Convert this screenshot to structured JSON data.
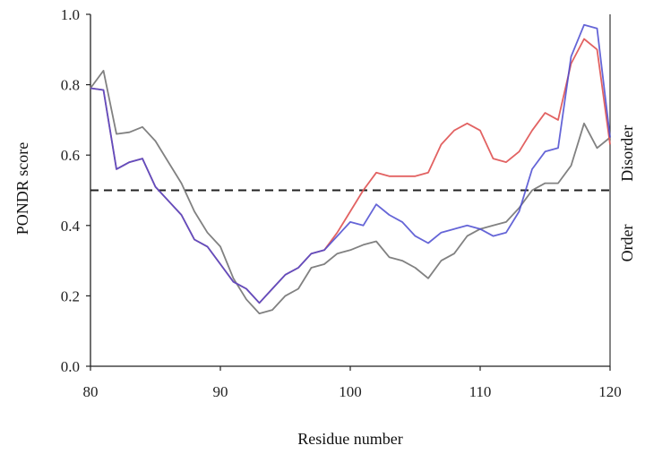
{
  "chart_data": {
    "type": "line",
    "xlabel": "Residue number",
    "ylabel": "PONDR score",
    "right_labels": {
      "order": "Order",
      "disorder": "Disorder"
    },
    "xlim": [
      80,
      120
    ],
    "ylim": [
      0,
      1.0
    ],
    "x_ticks": [
      80,
      90,
      100,
      110,
      120
    ],
    "y_ticks": [
      0.0,
      0.2,
      0.4,
      0.6,
      0.8,
      1.0
    ],
    "y_tick_labels": [
      "0.0",
      "0.2",
      "0.4",
      "0.6",
      "0.8",
      "1.0"
    ],
    "grid": false,
    "threshold": {
      "y": 0.5,
      "style": "dashed",
      "color": "#222222"
    },
    "x": [
      80,
      81,
      82,
      83,
      84,
      85,
      86,
      87,
      88,
      89,
      90,
      91,
      92,
      93,
      94,
      95,
      96,
      97,
      98,
      99,
      100,
      101,
      102,
      103,
      104,
      105,
      106,
      107,
      108,
      109,
      110,
      111,
      112,
      113,
      114,
      115,
      116,
      117,
      118,
      119,
      120
    ],
    "series": [
      {
        "color": "#e05a5a",
        "values": [
          0.79,
          0.785,
          0.56,
          0.58,
          0.59,
          0.51,
          0.47,
          0.43,
          0.36,
          0.34,
          0.29,
          0.24,
          0.22,
          0.18,
          0.22,
          0.26,
          0.28,
          0.32,
          0.33,
          0.38,
          0.44,
          0.5,
          0.55,
          0.54,
          0.54,
          0.54,
          0.55,
          0.63,
          0.67,
          0.69,
          0.67,
          0.59,
          0.58,
          0.61,
          0.67,
          0.72,
          0.7,
          0.86,
          0.93,
          0.9,
          0.63
        ]
      },
      {
        "color": "#4a4ad0",
        "values": [
          0.79,
          0.785,
          0.56,
          0.58,
          0.59,
          0.51,
          0.47,
          0.43,
          0.36,
          0.34,
          0.29,
          0.24,
          0.22,
          0.18,
          0.22,
          0.26,
          0.28,
          0.32,
          0.33,
          0.37,
          0.41,
          0.4,
          0.46,
          0.43,
          0.41,
          0.37,
          0.35,
          0.38,
          0.39,
          0.4,
          0.39,
          0.37,
          0.38,
          0.44,
          0.56,
          0.61,
          0.62,
          0.88,
          0.97,
          0.96,
          0.65
        ]
      },
      {
        "color": "#7a7a7a",
        "values": [
          0.79,
          0.84,
          0.66,
          0.665,
          0.68,
          0.64,
          0.58,
          0.52,
          0.44,
          0.38,
          0.34,
          0.25,
          0.19,
          0.15,
          0.16,
          0.2,
          0.22,
          0.28,
          0.29,
          0.32,
          0.33,
          0.345,
          0.355,
          0.31,
          0.3,
          0.28,
          0.25,
          0.3,
          0.32,
          0.37,
          0.39,
          0.4,
          0.41,
          0.45,
          0.5,
          0.52,
          0.52,
          0.57,
          0.69,
          0.62,
          0.65
        ]
      }
    ]
  }
}
